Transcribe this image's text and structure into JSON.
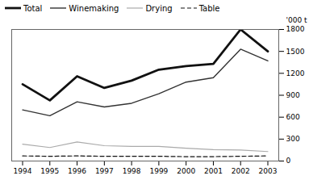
{
  "chart_data": {
    "type": "line",
    "x": [
      1994,
      1995,
      1996,
      1997,
      1998,
      1999,
      2000,
      2001,
      2002,
      2003
    ],
    "series": [
      {
        "name": "Total",
        "color": "#111111",
        "line_style": "solid",
        "values": [
          1050,
          830,
          1160,
          1000,
          1100,
          1250,
          1300,
          1330,
          1800,
          1500
        ]
      },
      {
        "name": "Winemaking",
        "color": "#333333",
        "line_style": "solid",
        "values": [
          700,
          620,
          810,
          740,
          790,
          920,
          1080,
          1140,
          1530,
          1370
        ]
      },
      {
        "name": "Drying",
        "color": "#aaaaaa",
        "line_style": "solid",
        "values": [
          230,
          185,
          260,
          210,
          200,
          200,
          175,
          155,
          150,
          130
        ]
      },
      {
        "name": "Table",
        "color": "#111111",
        "line_style": "dashed",
        "values": [
          70,
          65,
          70,
          65,
          65,
          65,
          60,
          60,
          65,
          70
        ]
      }
    ],
    "ylabel": "'000 t",
    "xlim": [
      1993.6,
      2003.4
    ],
    "xticks": [
      1994,
      1995,
      1996,
      1997,
      1998,
      1999,
      2000,
      2001,
      2002,
      2003
    ],
    "ylim": [
      0,
      1800
    ],
    "yticks": [
      0,
      300,
      600,
      900,
      1200,
      1500,
      1800
    ],
    "grid": false,
    "legend": "upper left"
  }
}
